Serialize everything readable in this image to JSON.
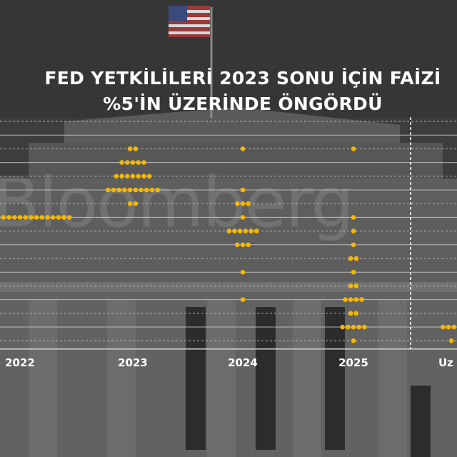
{
  "title_line1": "FED YETKİLİLERİ 2023 SONU İÇİN FAİZİ",
  "title_line2": "%5'İN ÜZERİNDE ÖNGÖRDÜ",
  "watermark": "Bloomberg",
  "colors": {
    "dot": "#f5b800",
    "grid": "#d9d9d9",
    "text": "#ffffff",
    "background": "#3f3f3f"
  },
  "chart_data": {
    "type": "scatter",
    "title": "FED YETKİLİLERİ 2023 SONU İÇİN FAİZİ %5'İN ÜZERİNDE ÖNGÖRDÜ",
    "categories": [
      "2022",
      "2023",
      "2024",
      "2025",
      "Uz"
    ],
    "y_levels": [
      6.125,
      5.875,
      5.625,
      5.375,
      5.125,
      4.875,
      4.625,
      4.375,
      4.125,
      3.875,
      3.625,
      3.375,
      3.125,
      2.875,
      2.625,
      2.375,
      2.125
    ],
    "grid_style": [
      "dashed",
      "solid",
      "dashed",
      "solid",
      "dashed",
      "solid",
      "dashed",
      "solid",
      "dashed",
      "solid",
      "dashed",
      "solid",
      "dashed",
      "solid",
      "dashed",
      "solid",
      "dashed"
    ],
    "separator_after_category": "2025",
    "series": [
      {
        "category": "2022",
        "points": [
          {
            "y": 4.375,
            "count": 19
          }
        ]
      },
      {
        "category": "2023",
        "points": [
          {
            "y": 5.625,
            "count": 2
          },
          {
            "y": 5.375,
            "count": 5
          },
          {
            "y": 5.125,
            "count": 7
          },
          {
            "y": 4.875,
            "count": 10
          },
          {
            "y": 4.625,
            "count": 2
          }
        ]
      },
      {
        "category": "2024",
        "points": [
          {
            "y": 5.625,
            "count": 1
          },
          {
            "y": 4.875,
            "count": 1
          },
          {
            "y": 4.625,
            "count": 3
          },
          {
            "y": 4.375,
            "count": 1
          },
          {
            "y": 4.125,
            "count": 6
          },
          {
            "y": 3.875,
            "count": 3
          },
          {
            "y": 3.375,
            "count": 1
          },
          {
            "y": 2.875,
            "count": 1
          }
        ]
      },
      {
        "category": "2025",
        "points": [
          {
            "y": 5.625,
            "count": 1
          },
          {
            "y": 4.375,
            "count": 1
          },
          {
            "y": 4.125,
            "count": 1
          },
          {
            "y": 3.875,
            "count": 1
          },
          {
            "y": 3.625,
            "count": 2
          },
          {
            "y": 3.375,
            "count": 1
          },
          {
            "y": 3.125,
            "count": 2
          },
          {
            "y": 2.875,
            "count": 4
          },
          {
            "y": 2.625,
            "count": 2
          },
          {
            "y": 2.375,
            "count": 5
          },
          {
            "y": 2.125,
            "count": 1
          }
        ]
      },
      {
        "category": "Uz",
        "points": [
          {
            "y": 2.375,
            "count": 4
          },
          {
            "y": 2.125,
            "count": 1
          }
        ]
      }
    ]
  }
}
